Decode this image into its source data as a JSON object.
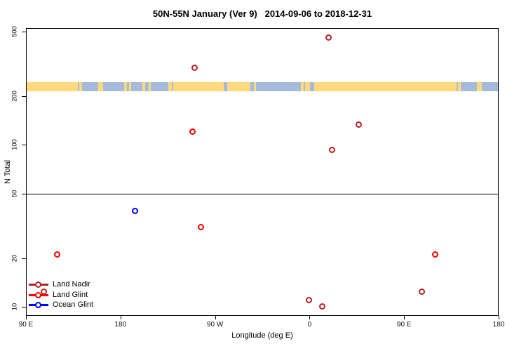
{
  "title": "50N-55N January (Ver 9)   2014-09-06 to 2018-12-31",
  "x_axis_title": "Longitude (deg E)",
  "y_axis_title": "N Total",
  "legend": {
    "marker_shape": "line-circle",
    "items": [
      {
        "label": "Land Nadir",
        "color": "#B22222"
      },
      {
        "label": "Land Glint",
        "color": "#FF0000"
      },
      {
        "label": "Ocean Glint",
        "color": "#0000FF"
      }
    ]
  },
  "chart_data": {
    "type": "scatter",
    "title": "50N-55N January (Ver 9)   2014-09-06 to 2018-12-31",
    "xlabel": "Longitude (deg E)",
    "ylabel": "N Total",
    "x_axis": {
      "start_lon_deg_e": 90,
      "span_deg": 450,
      "ticks_axis_deg": [
        0,
        90,
        180,
        270,
        360,
        450
      ],
      "tick_labels": [
        "90 E",
        "180",
        "90 W",
        "0",
        "90 E",
        "180"
      ]
    },
    "y_axis": {
      "scale": "log",
      "ticks": [
        10,
        20,
        50,
        100,
        200,
        500
      ],
      "range": [
        8.8,
        525
      ],
      "reference_line_at": 50
    },
    "series": [
      {
        "name": "Land Nadir",
        "color": "#B22222",
        "points": [
          {
            "axis_deg": 160.9,
            "lon": "109 W",
            "n": 300
          },
          {
            "axis_deg": 288.4,
            "lon": "18 E",
            "n": 460
          },
          {
            "axis_deg": 316.5,
            "lon": "47 E",
            "n": 133
          },
          {
            "axis_deg": 291.1,
            "lon": "21 E",
            "n": 93
          },
          {
            "axis_deg": 269.1,
            "lon": "1 W",
            "n": 11
          },
          {
            "axis_deg": 282.4,
            "lon": "12 E",
            "n": 10
          },
          {
            "axis_deg": 16.7,
            "lon": "107 E",
            "n": 12.4
          },
          {
            "axis_deg": 376.7,
            "lon": "107 E (wrap)",
            "n": 12.4
          }
        ]
      },
      {
        "name": "Land Glint",
        "color": "#FF0000",
        "points": [
          {
            "axis_deg": 158.9,
            "lon": "111 W",
            "n": 121
          },
          {
            "axis_deg": 166.3,
            "lon": "104 W",
            "n": 31
          },
          {
            "axis_deg": 29.4,
            "lon": "119 E",
            "n": 21
          },
          {
            "axis_deg": 389.4,
            "lon": "119 E (wrap)",
            "n": 21
          }
        ]
      },
      {
        "name": "Ocean Glint",
        "color": "#0000FF",
        "points": [
          {
            "axis_deg": 103.5,
            "lon": "167 W",
            "n": 39
          }
        ]
      }
    ],
    "map_band": {
      "description": "50N-55N latitude coastline strip",
      "n_range": [
        214,
        244
      ],
      "ocean_color": "#A6BBDC",
      "land_color": "#FFD97E",
      "land_segments_axis_deg": [
        [
          0,
          48.7
        ],
        [
          50.1,
          52.7
        ],
        [
          68.1,
          72.8
        ],
        [
          92.8,
          95.5
        ],
        [
          97.5,
          99.5
        ],
        [
          110.2,
          112.8
        ],
        [
          116.2,
          118.2
        ],
        [
          134.9,
          138.2
        ],
        [
          139.5,
          187.6
        ],
        [
          190.9,
          213.0
        ],
        [
          216.3,
          218.3
        ],
        [
          261.1,
          263.7
        ],
        [
          265.0,
          269.7
        ],
        [
          273.7,
          409.3
        ],
        [
          410.6,
          413.3
        ],
        [
          428.6,
          433.3
        ]
      ]
    }
  }
}
